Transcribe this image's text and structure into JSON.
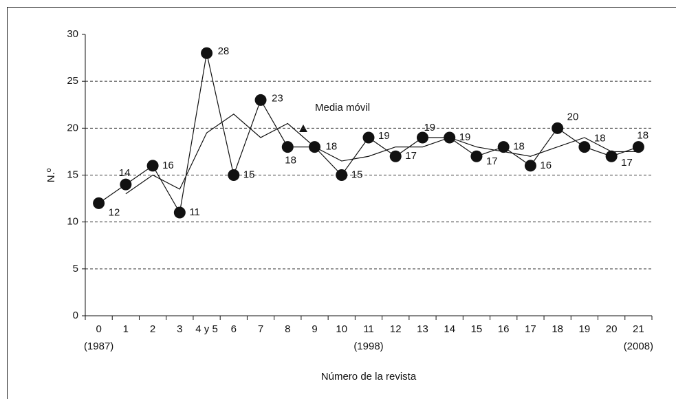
{
  "chart_data": {
    "type": "line",
    "categories": [
      "0",
      "1",
      "2",
      "3",
      "4 y 5",
      "6",
      "7",
      "8",
      "9",
      "10",
      "11",
      "12",
      "13",
      "14",
      "15",
      "16",
      "17",
      "18",
      "19",
      "20",
      "21"
    ],
    "category_years": [
      "(1987)",
      null,
      null,
      null,
      null,
      null,
      null,
      null,
      null,
      null,
      "(1998)",
      null,
      null,
      null,
      null,
      null,
      null,
      null,
      null,
      null,
      "(2008)"
    ],
    "series": [
      {
        "color": "#111111",
        "marker": "circle",
        "values": [
          12,
          14,
          16,
          11,
          28,
          15,
          23,
          18,
          18,
          15,
          19,
          17,
          19,
          19,
          17,
          18,
          16,
          20,
          18,
          17,
          18
        ]
      },
      {
        "name": "Media móvil",
        "color": "#111111",
        "marker": "none",
        "values": [
          null,
          13,
          15,
          13.5,
          19.5,
          21.5,
          19,
          20.5,
          18,
          16.5,
          17,
          18,
          18,
          19,
          18,
          17.5,
          17,
          18,
          19,
          17.5,
          17.5
        ]
      }
    ],
    "ylabel": "N.º",
    "xlabel": "Número de la revista",
    "ylim": [
      0,
      30
    ],
    "yticks": [
      0,
      5,
      10,
      15,
      20,
      25,
      30
    ],
    "grid": true
  }
}
